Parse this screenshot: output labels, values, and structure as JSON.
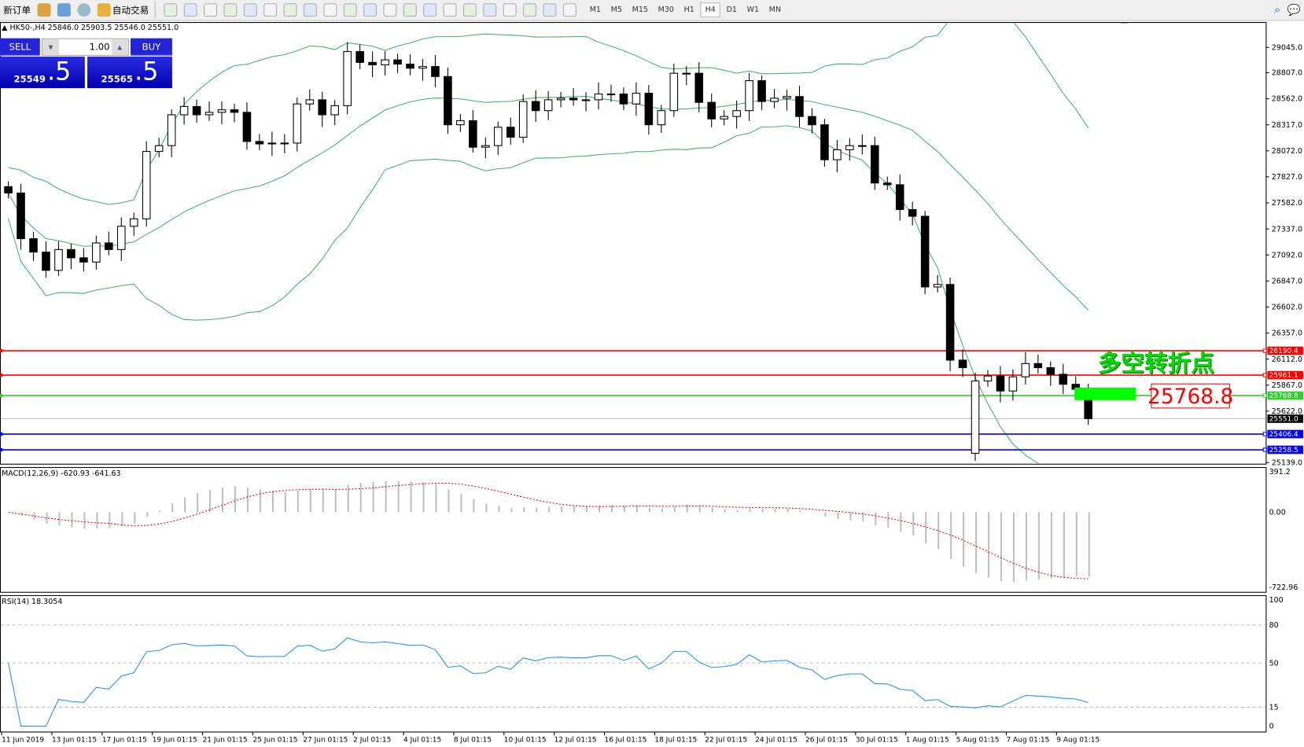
{
  "toolbar": {
    "new_order": "新订单",
    "auto_trading": "自动交易",
    "timeframes": [
      "M1",
      "M5",
      "M15",
      "M30",
      "H1",
      "H4",
      "D1",
      "W1",
      "MN"
    ],
    "active_timeframe": "H4",
    "icons": [
      "gold-bars-icon",
      "market-watch-icon",
      "signals-icon",
      "auto-trading-icon",
      "bar-chart-icon",
      "candlestick-icon",
      "line-chart-icon",
      "zoom-in-icon",
      "zoom-out-icon",
      "tile-windows-icon",
      "chart-shift-icon",
      "auto-scroll-icon",
      "new-indicator-icon",
      "periods-icon",
      "templates-icon",
      "cursor-icon",
      "crosshair-icon",
      "vertical-line-icon",
      "horizontal-line-icon",
      "trendline-icon",
      "fibonacci-icon",
      "gann-icon",
      "text-icon",
      "text-label-icon",
      "arrows-icon",
      "search-icon",
      "chat-icon"
    ]
  },
  "chart": {
    "title": "HK50-,H4  25846.0 25903.5 25546.0 25551.0",
    "sell_label": "SELL",
    "buy_label": "BUY",
    "lot": "1.00",
    "sell_big": "25549",
    "sell_small": ".5",
    "buy_big": "25565",
    "buy_small": ".5",
    "annotation": "多空转折点",
    "annotation_price": "25768.8",
    "price_axis": [
      "29045.0",
      "28807.0",
      "28562.0",
      "28317.0",
      "28072.0",
      "27827.0",
      "27582.0",
      "27337.0",
      "27092.0",
      "26847.0",
      "26602.0",
      "26357.0",
      "26112.0",
      "25867.0",
      "25622.0",
      "25139.0"
    ],
    "levels": [
      {
        "price": "26190.4",
        "color": "#ff0000"
      },
      {
        "price": "25961.1",
        "color": "#ff0000"
      },
      {
        "price": "25768.8",
        "color": "#32cd32"
      },
      {
        "price": "25551.0",
        "color": "#000000"
      },
      {
        "price": "25406.4",
        "color": "#0000ff"
      },
      {
        "price": "25258.5",
        "color": "#0000ff"
      }
    ],
    "colors": {
      "bands": "#3cb371",
      "macd_hist": "#c0c0c0",
      "macd_signal": "#ff0000",
      "rsi": "#1e90ff"
    },
    "closes": [
      27675,
      27245,
      27119,
      26947,
      27143,
      27065,
      27025,
      27205,
      27143,
      27362,
      27432,
      28066,
      28121,
      28411,
      28489,
      28411,
      28434,
      28458,
      28434,
      28160,
      28137,
      28145,
      28145,
      28513,
      28552,
      28411,
      28497,
      29006,
      28904,
      28881,
      28928,
      28888,
      28849,
      28865,
      28771,
      28317,
      28356,
      28106,
      28121,
      28294,
      28200,
      28536,
      28450,
      28552,
      28567,
      28552,
      28552,
      28607,
      28607,
      28513,
      28614,
      28317,
      28450,
      28802,
      28802,
      28528,
      28372,
      28395,
      28450,
      28732,
      28536,
      28567,
      28583,
      28395,
      28317,
      27988,
      28082,
      28121,
      28121,
      27769,
      27753,
      27519,
      27456,
      26791,
      26814,
      26102,
      26031,
      25906,
      25953,
      25812,
      25945,
      26070,
      26031,
      25969,
      25875,
      25828,
      25551
    ]
  },
  "macd": {
    "label": "MACD(12,26,9) -620.93 -641.63",
    "axis": [
      "391.2",
      "0.00",
      "-722.96"
    ],
    "range": [
      -722.96,
      391.2
    ]
  },
  "rsi": {
    "label": "RSI(14) 18.3054",
    "axis": [
      "100",
      "80",
      "50",
      "15",
      "0"
    ],
    "levels": [
      80,
      50,
      15
    ]
  },
  "time_axis": [
    "11 Jun 2019",
    "13 Jun 01:15",
    "17 Jun 01:15",
    "19 Jun 01:15",
    "21 Jun 01:15",
    "25 Jun 01:15",
    "27 Jun 01:15",
    "2 Jul 01:15",
    "4 Jul 01:15",
    "8 Jul 01:15",
    "10 Jul 01:15",
    "12 Jul 01:15",
    "16 Jul 01:15",
    "18 Jul 01:15",
    "22 Jul 01:15",
    "24 Jul 01:15",
    "26 Jul 01:15",
    "30 Jul 01:15",
    "1 Aug 01:15",
    "5 Aug 01:15",
    "7 Aug 01:15",
    "9 Aug 01:15"
  ]
}
